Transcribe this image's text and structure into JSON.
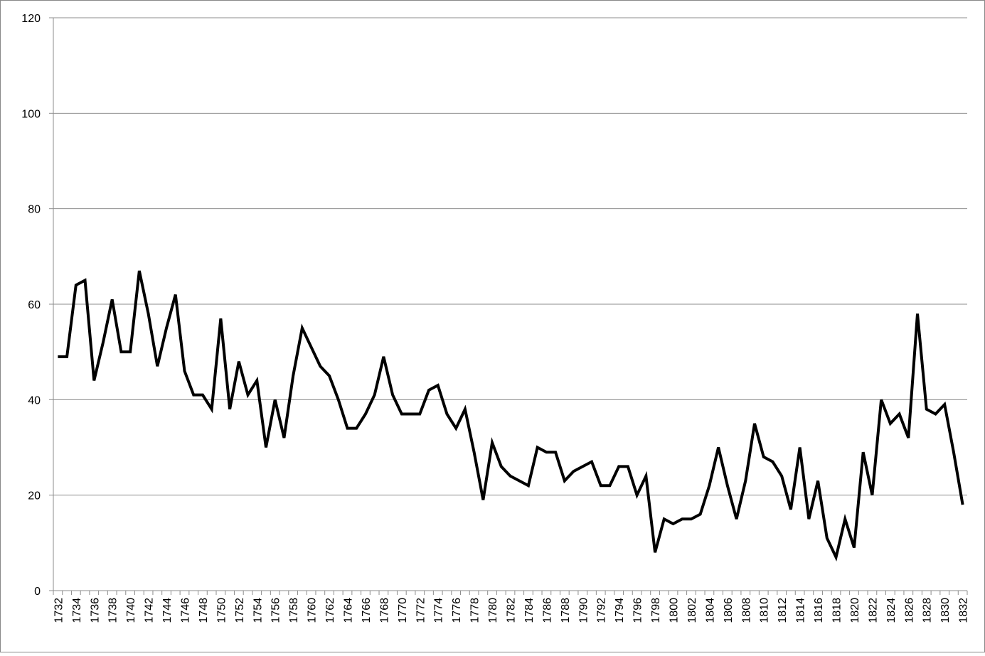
{
  "chart_data": {
    "type": "line",
    "categories": [
      "1732",
      null,
      "1734",
      null,
      "1736",
      null,
      "1738",
      null,
      "1740",
      null,
      "1742",
      null,
      "1744",
      null,
      "1746",
      null,
      "1748",
      null,
      "1750",
      null,
      "1752",
      null,
      "1754",
      null,
      "1756",
      null,
      "1758",
      null,
      "1760",
      null,
      "1762",
      null,
      "1764",
      null,
      "1766",
      null,
      "1768",
      null,
      "1770",
      null,
      "1772",
      null,
      "1774",
      null,
      "1776",
      null,
      "1778",
      null,
      "1780",
      null,
      "1782",
      null,
      "1784",
      null,
      "1786",
      null,
      "1788",
      null,
      "1790",
      null,
      "1792",
      null,
      "1794",
      null,
      "1796",
      null,
      "1798",
      null,
      "1800",
      null,
      "1802",
      null,
      "1804",
      null,
      "1806",
      null,
      "1808",
      null,
      "1810",
      null,
      "1812",
      null,
      "1814",
      null,
      "1816",
      null,
      "1818",
      null,
      "1820",
      null,
      "1822",
      null,
      "1824",
      null,
      "1826",
      null,
      "1828",
      null,
      "1830",
      null,
      "1832"
    ],
    "values": [
      49,
      49,
      64,
      65,
      44,
      52,
      61,
      50,
      50,
      67,
      58,
      47,
      55,
      62,
      46,
      41,
      41,
      38,
      57,
      38,
      48,
      41,
      44,
      30,
      40,
      32,
      45,
      55,
      51,
      47,
      45,
      40,
      34,
      34,
      37,
      41,
      49,
      41,
      37,
      37,
      37,
      42,
      43,
      37,
      34,
      38,
      29,
      19,
      31,
      26,
      24,
      23,
      22,
      30,
      29,
      29,
      23,
      25,
      26,
      27,
      22,
      22,
      26,
      26,
      20,
      24,
      8,
      15,
      14,
      15,
      15,
      16,
      22,
      30,
      22,
      15,
      23,
      35,
      28,
      27,
      24,
      17,
      30,
      15,
      23,
      11,
      7,
      15,
      9,
      29,
      20,
      40,
      35,
      37,
      32,
      58,
      38,
      37,
      39,
      29,
      18
    ],
    "color": "#000000",
    "ylim": [
      0,
      120
    ],
    "yticks": [
      0,
      20,
      40,
      60,
      80,
      100,
      120
    ],
    "grid": true
  }
}
